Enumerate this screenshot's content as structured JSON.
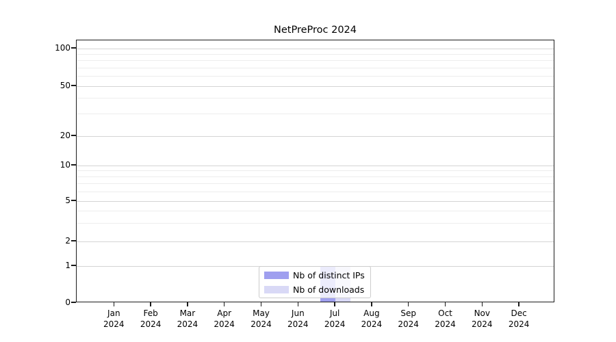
{
  "chart_data": {
    "type": "bar",
    "title": "NetPreProc 2024",
    "categories": [
      "Jan 2024",
      "Feb 2024",
      "Mar 2024",
      "Apr 2024",
      "May 2024",
      "Jun 2024",
      "Jul 2024",
      "Aug 2024",
      "Sep 2024",
      "Oct 2024",
      "Nov 2024",
      "Dec 2024"
    ],
    "x_tick_months": [
      "Jan",
      "Feb",
      "Mar",
      "Apr",
      "May",
      "Jun",
      "Jul",
      "Aug",
      "Sep",
      "Oct",
      "Nov",
      "Dec"
    ],
    "x_tick_year": "2024",
    "series": [
      {
        "name": "Nb of distinct IPs",
        "color": "#9f9fef",
        "values": [
          0,
          0,
          0,
          0,
          0,
          0,
          1,
          0,
          0,
          0,
          0,
          0
        ]
      },
      {
        "name": "Nb of downloads",
        "color": "#d9d9f6",
        "values": [
          0,
          0,
          0,
          0,
          0,
          0,
          1,
          0,
          0,
          0,
          0,
          0
        ]
      }
    ],
    "y_axis": {
      "scale": "log above 1, linear 0-1",
      "major_ticks": [
        100,
        50,
        20,
        10,
        5,
        2,
        1,
        0
      ],
      "minor_gridline_values": [
        90,
        80,
        70,
        60,
        40,
        30,
        9,
        8,
        7,
        6,
        4,
        3
      ],
      "ylim": [
        0,
        110
      ]
    },
    "grid": {
      "horizontal_major": true,
      "horizontal_minor": true,
      "vertical": false
    },
    "legend": {
      "position": "lower center, inside plot"
    },
    "colors": {
      "grid_major": "#d4d4d4",
      "grid_minor": "#ededed",
      "spine": "#1a1a1a",
      "text": "#000000"
    }
  }
}
